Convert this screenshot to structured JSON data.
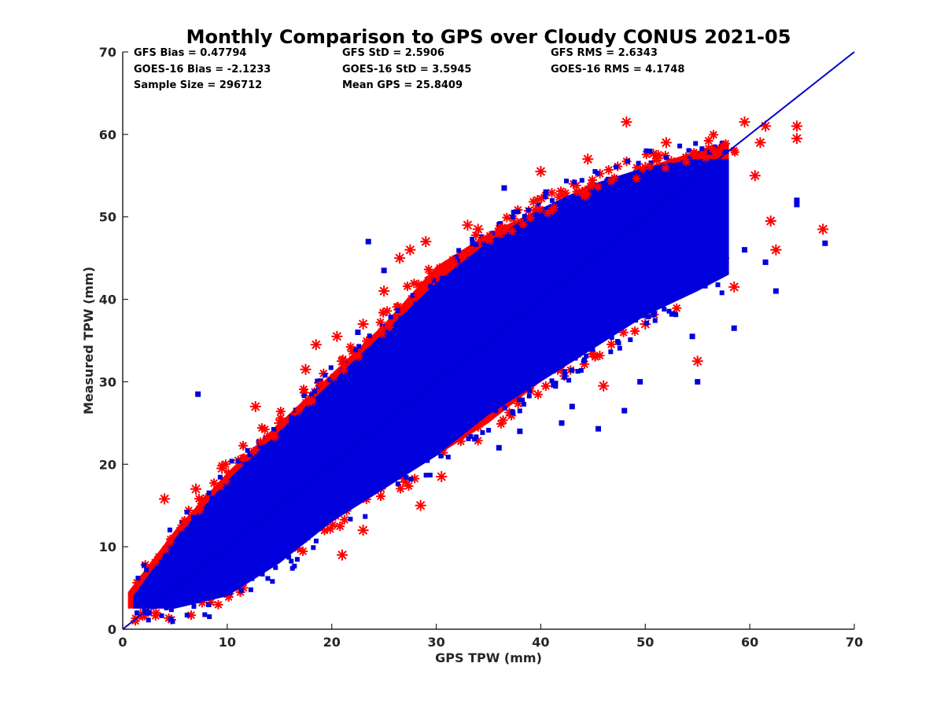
{
  "chart_data": {
    "type": "scatter",
    "title": "Monthly Comparison to GPS over Cloudy CONUS 2021-05",
    "xlabel": "GPS TPW (mm)",
    "ylabel": "Measured TPW (mm)",
    "xlim": [
      0,
      70
    ],
    "ylim": [
      0,
      70
    ],
    "xticks": [
      "0",
      "10",
      "20",
      "30",
      "40",
      "50",
      "60",
      "70"
    ],
    "yticks": [
      "0",
      "10",
      "20",
      "30",
      "40",
      "50",
      "60",
      "70"
    ],
    "grid": false,
    "legend": "none",
    "reference_line": {
      "x": [
        0,
        70
      ],
      "y": [
        0,
        70
      ],
      "color": "#0000cc"
    },
    "stats": [
      {
        "text": "GFS Bias = 0.47794"
      },
      {
        "text": "GFS StD = 2.5906"
      },
      {
        "text": "GFS RMS = 2.6343"
      },
      {
        "text": "GOES-16 Bias = -2.1233"
      },
      {
        "text": "GOES-16 StD = 3.5945"
      },
      {
        "text": "GOES-16 RMS = 4.1748"
      },
      {
        "text": "Sample Size = 296712"
      },
      {
        "text": "Mean GPS = 25.8409"
      }
    ],
    "series": [
      {
        "marker": "asterisk",
        "color": "#ff0000",
        "band_upper": [
          [
            0.5,
            4.5
          ],
          [
            5,
            12
          ],
          [
            10,
            19
          ],
          [
            15,
            25
          ],
          [
            20,
            31
          ],
          [
            25,
            37
          ],
          [
            30,
            44
          ],
          [
            35,
            48
          ],
          [
            40,
            51
          ],
          [
            45,
            54
          ],
          [
            50,
            56
          ],
          [
            55,
            58
          ],
          [
            58,
            59
          ]
        ],
        "band_lower": [
          [
            0.5,
            2.5
          ],
          [
            5,
            2.5
          ],
          [
            10,
            4
          ],
          [
            15,
            8
          ],
          [
            20,
            13
          ],
          [
            25,
            17
          ],
          [
            30,
            21
          ],
          [
            35,
            25
          ],
          [
            40,
            30
          ],
          [
            45,
            34
          ],
          [
            50,
            38
          ],
          [
            55,
            41
          ],
          [
            58,
            43
          ]
        ],
        "points": [
          [
            1.7,
            1.8
          ],
          [
            4,
            15.8
          ],
          [
            7,
            17
          ],
          [
            9.5,
            19.5
          ],
          [
            12.7,
            27
          ],
          [
            15,
            25
          ],
          [
            17.5,
            31.5
          ],
          [
            18.5,
            34.5
          ],
          [
            20.5,
            35.5
          ],
          [
            21,
            32.5
          ],
          [
            23,
            37
          ],
          [
            25,
            41
          ],
          [
            26.5,
            45
          ],
          [
            27.5,
            46
          ],
          [
            28.5,
            15
          ],
          [
            29,
            47
          ],
          [
            33,
            49
          ],
          [
            34,
            48.5
          ],
          [
            40,
            55.5
          ],
          [
            44.5,
            57
          ],
          [
            48.2,
            61.5
          ],
          [
            50,
            56
          ],
          [
            52,
            59
          ],
          [
            54,
            57
          ],
          [
            55,
            32.5
          ],
          [
            56.5,
            58
          ],
          [
            57.5,
            45
          ],
          [
            58.5,
            41.5
          ],
          [
            59.5,
            61.5
          ],
          [
            60.5,
            55
          ],
          [
            61,
            59
          ],
          [
            61.5,
            61
          ],
          [
            62,
            49.5
          ],
          [
            62.5,
            46
          ],
          [
            64.5,
            61
          ],
          [
            64.5,
            59.5
          ],
          [
            67,
            48.5
          ],
          [
            8,
            9
          ],
          [
            21,
            9
          ],
          [
            23,
            12
          ],
          [
            30.5,
            18.5
          ],
          [
            46,
            29.5
          ],
          [
            50,
            37
          ]
        ]
      },
      {
        "marker": "square",
        "color": "#0000dd",
        "band_upper": [
          [
            1,
            4
          ],
          [
            5,
            11
          ],
          [
            10,
            18
          ],
          [
            15,
            24
          ],
          [
            20,
            30
          ],
          [
            25,
            36
          ],
          [
            30,
            42
          ],
          [
            35,
            47
          ],
          [
            40,
            51
          ],
          [
            45,
            54
          ],
          [
            50,
            56
          ],
          [
            55,
            57
          ],
          [
            58,
            57
          ]
        ],
        "band_lower": [
          [
            1,
            2.5
          ],
          [
            5,
            2.5
          ],
          [
            10,
            4
          ],
          [
            15,
            8
          ],
          [
            20,
            13
          ],
          [
            25,
            17
          ],
          [
            30,
            21
          ],
          [
            35,
            26
          ],
          [
            40,
            30
          ],
          [
            45,
            34
          ],
          [
            50,
            38
          ],
          [
            55,
            41
          ],
          [
            58,
            43
          ]
        ],
        "points": [
          [
            7.2,
            28.5
          ],
          [
            22.5,
            36
          ],
          [
            25,
            43.5
          ],
          [
            23.5,
            47
          ],
          [
            36.5,
            53.5
          ],
          [
            37.5,
            48.5
          ],
          [
            40.5,
            53
          ],
          [
            46.5,
            52
          ],
          [
            54.5,
            35.5
          ],
          [
            55,
            30
          ],
          [
            58.5,
            36.5
          ],
          [
            59.5,
            46
          ],
          [
            61.5,
            44.5
          ],
          [
            62.5,
            41
          ],
          [
            64.5,
            51.5
          ],
          [
            64.5,
            52
          ],
          [
            67.2,
            46.8
          ],
          [
            45.5,
            24.3
          ],
          [
            38,
            24
          ],
          [
            42,
            25
          ],
          [
            48,
            26.5
          ],
          [
            49.5,
            30
          ],
          [
            2.5,
            2
          ],
          [
            43,
            27
          ],
          [
            36,
            22
          ]
        ]
      }
    ]
  }
}
